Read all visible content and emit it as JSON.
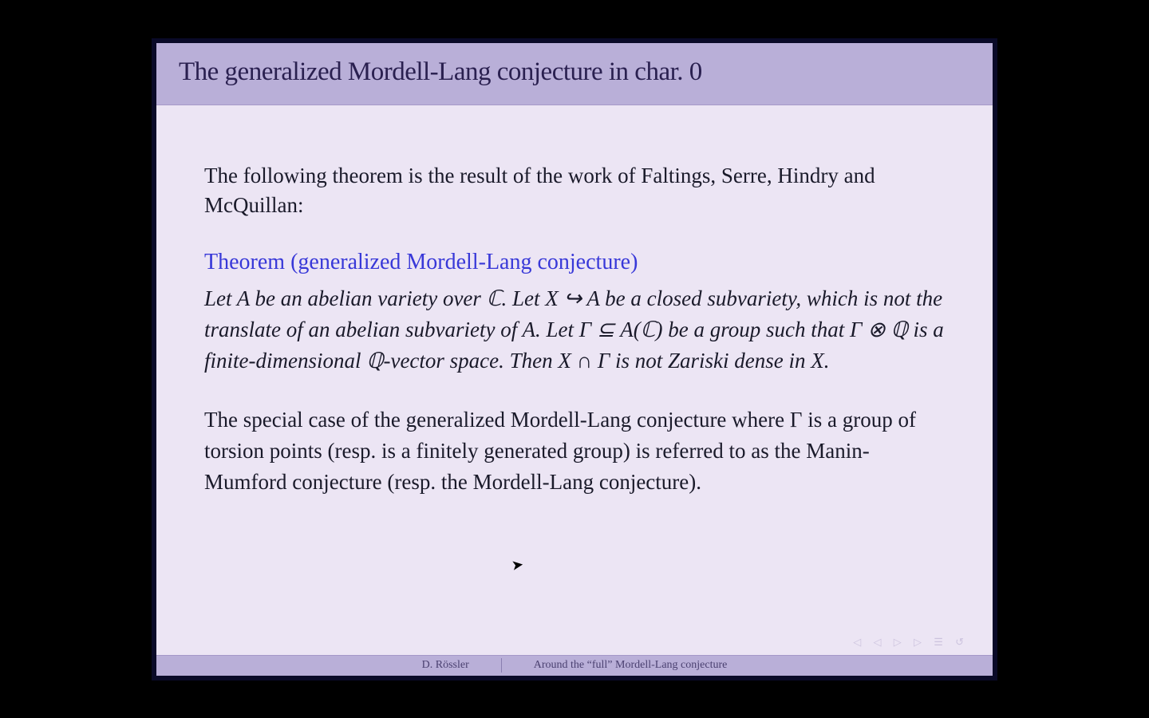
{
  "colors": {
    "page_bg": "#000000",
    "frame_bg": "#0a0a28",
    "slide_bg": "#ece5f4",
    "title_bar_bg": "#b9afd8",
    "title_text": "#2a2050",
    "body_text": "#1a1a2a",
    "theorem_heading": "#3838d8",
    "footer_bg": "#b9afd8",
    "footer_text": "#4a4070",
    "nav_icons": "#b8aed0"
  },
  "typography": {
    "title_fontsize": 33,
    "body_fontsize": 27,
    "theorem_heading_fontsize": 28,
    "footer_fontsize": 14,
    "font_family": "serif"
  },
  "slide": {
    "title": "The generalized Mordell-Lang conjecture in char. 0",
    "intro": "The following theorem is the result of the work of Faltings, Serre, Hindry and McQuillan:",
    "theorem_heading": "Theorem (generalized Mordell-Lang conjecture)",
    "theorem_body": "Let A be an abelian variety over ℂ. Let X ↪ A be a closed subvariety, which is not the translate of an abelian subvariety of A. Let Γ ⊆ A(ℂ) be a group such that Γ ⊗ ℚ is a finite-dimensional ℚ-vector space. Then X ∩ Γ is not Zariski dense in X.",
    "followup": "The special case of the generalized Mordell-Lang conjecture where Γ is a group of torsion points (resp. is a finitely generated group) is referred to as the Manin-Mumford conjecture (resp. the Mordell-Lang conjecture)."
  },
  "footer": {
    "author": "D. Rössler",
    "talk_title": "Around the “full” Mordell-Lang conjecture"
  },
  "nav_symbols": "◁  ◁  ▷  ▷   ☰   ↺"
}
